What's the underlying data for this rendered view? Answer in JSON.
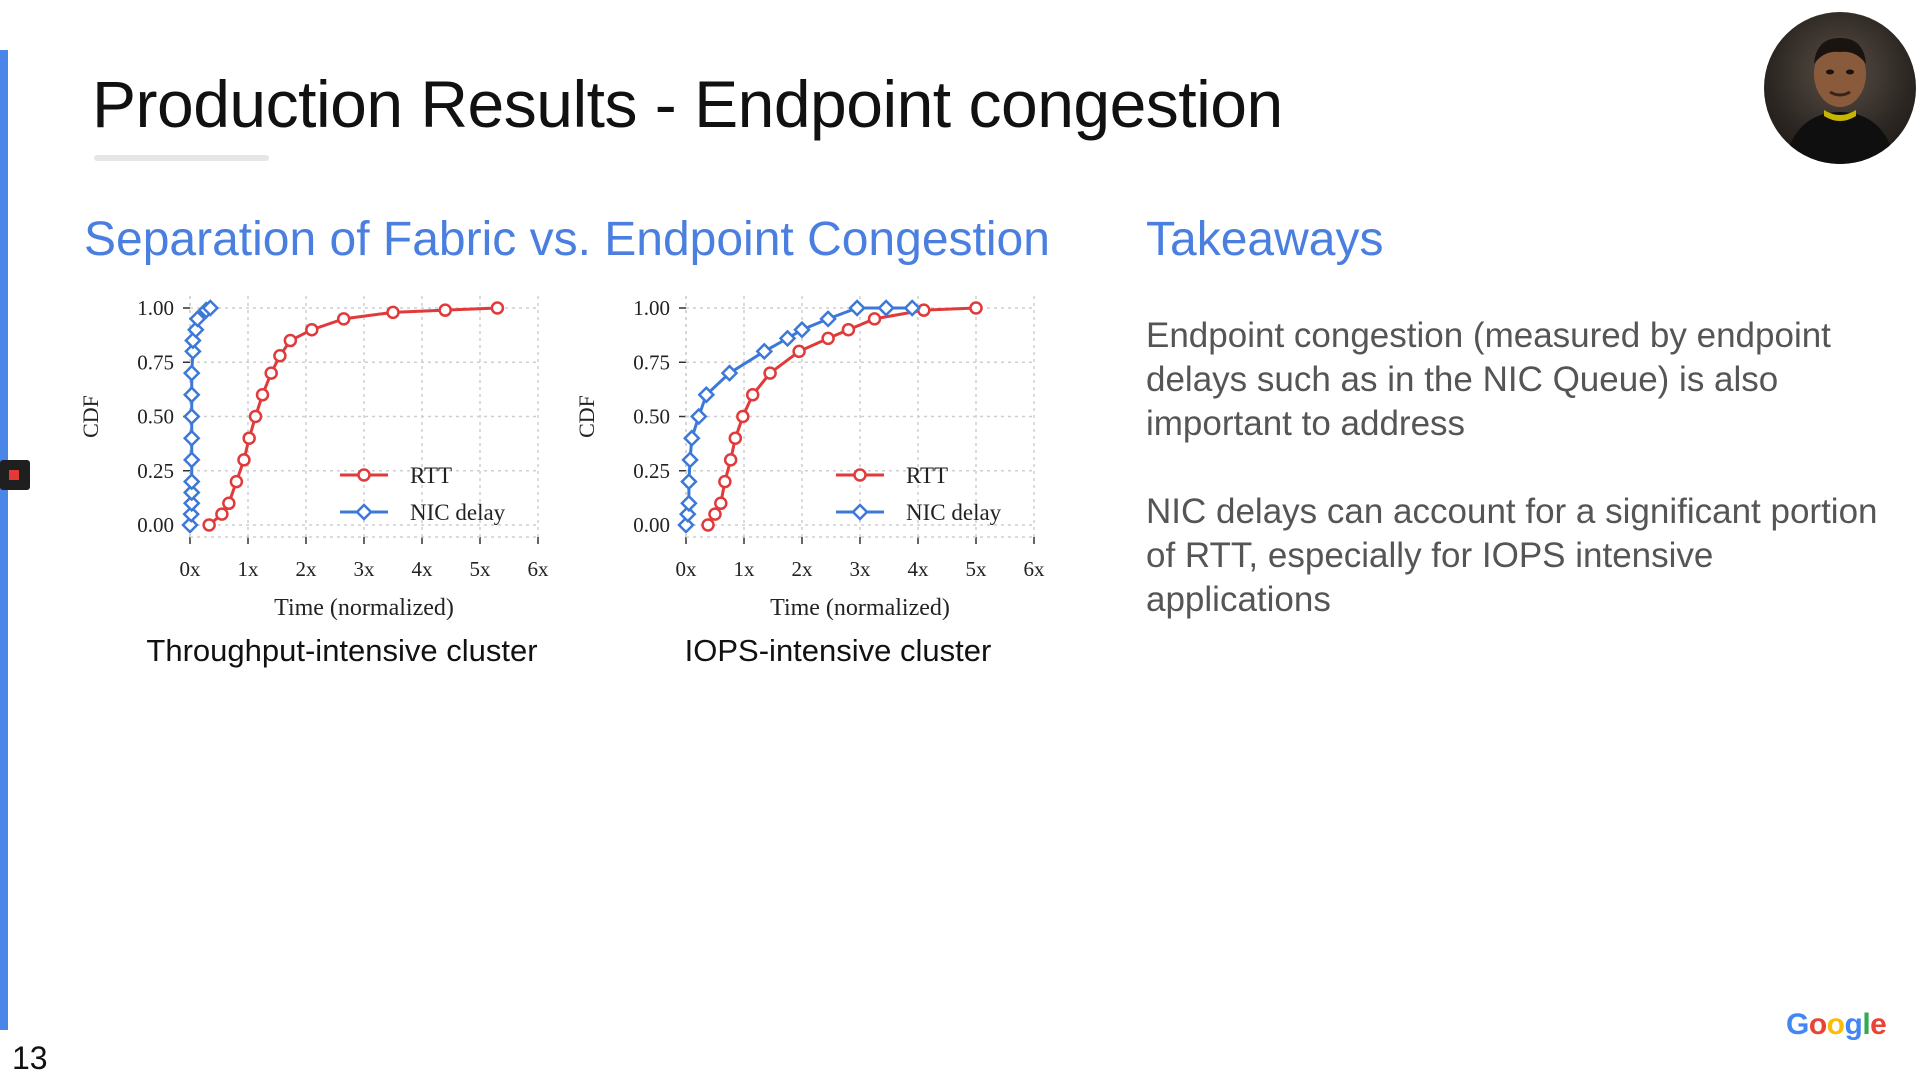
{
  "slide": {
    "title": "Production Results - Endpoint congestion",
    "page_number": "13",
    "left_heading": "Separation of Fabric vs. Endpoint Congestion",
    "right_heading": "Takeaways",
    "takeaways": [
      "Endpoint congestion (measured by endpoint delays such as in the NIC Queue) is also important to address",
      "NIC delays can account for a significant portion of RTT,  especially for IOPS intensive applications"
    ],
    "logo": {
      "letters": [
        "G",
        "o",
        "o",
        "g",
        "l",
        "e"
      ],
      "colors": [
        "#4285f4",
        "#ea4335",
        "#fbbc05",
        "#4285f4",
        "#34a853",
        "#ea4335"
      ]
    },
    "accent_color": "#4a86e8",
    "presenter_video": "webcam-thumbnail"
  },
  "chart_data": [
    {
      "type": "line",
      "caption": "Throughput-intensive cluster",
      "xlabel": "Time (normalized)",
      "ylabel": "CDF",
      "x_ticks": [
        "0x",
        "1x",
        "2x",
        "3x",
        "4x",
        "5x",
        "6x"
      ],
      "y_ticks": [
        "0.00",
        "0.25",
        "0.50",
        "0.75",
        "1.00"
      ],
      "xlim": [
        0,
        6
      ],
      "ylim": [
        0,
        1
      ],
      "grid": true,
      "legend": "bottom-right",
      "series": [
        {
          "name": "RTT",
          "color": "#e03a3a",
          "marker": "circle",
          "points": [
            [
              0.33,
              0.0
            ],
            [
              0.55,
              0.05
            ],
            [
              0.67,
              0.1
            ],
            [
              0.8,
              0.2
            ],
            [
              0.93,
              0.3
            ],
            [
              1.02,
              0.4
            ],
            [
              1.13,
              0.5
            ],
            [
              1.25,
              0.6
            ],
            [
              1.4,
              0.7
            ],
            [
              1.55,
              0.78
            ],
            [
              1.73,
              0.85
            ],
            [
              2.1,
              0.9
            ],
            [
              2.65,
              0.95
            ],
            [
              3.5,
              0.98
            ],
            [
              4.4,
              0.99
            ],
            [
              5.3,
              1.0
            ]
          ]
        },
        {
          "name": "NIC delay",
          "color": "#3c78d8",
          "marker": "diamond",
          "points": [
            [
              0.0,
              0.0
            ],
            [
              0.02,
              0.05
            ],
            [
              0.03,
              0.1
            ],
            [
              0.03,
              0.15
            ],
            [
              0.03,
              0.2
            ],
            [
              0.03,
              0.3
            ],
            [
              0.03,
              0.4
            ],
            [
              0.03,
              0.5
            ],
            [
              0.03,
              0.6
            ],
            [
              0.03,
              0.7
            ],
            [
              0.05,
              0.8
            ],
            [
              0.05,
              0.85
            ],
            [
              0.1,
              0.9
            ],
            [
              0.13,
              0.95
            ],
            [
              0.28,
              0.99
            ],
            [
              0.35,
              1.0
            ]
          ]
        }
      ]
    },
    {
      "type": "line",
      "caption": "IOPS-intensive cluster",
      "xlabel": "Time (normalized)",
      "ylabel": "CDF",
      "x_ticks": [
        "0x",
        "1x",
        "2x",
        "3x",
        "4x",
        "5x",
        "6x"
      ],
      "y_ticks": [
        "0.00",
        "0.25",
        "0.50",
        "0.75",
        "1.00"
      ],
      "xlim": [
        0,
        6
      ],
      "ylim": [
        0,
        1
      ],
      "grid": true,
      "legend": "bottom-right",
      "series": [
        {
          "name": "RTT",
          "color": "#e03a3a",
          "marker": "circle",
          "points": [
            [
              0.38,
              0.0
            ],
            [
              0.5,
              0.05
            ],
            [
              0.6,
              0.1
            ],
            [
              0.67,
              0.2
            ],
            [
              0.77,
              0.3
            ],
            [
              0.85,
              0.4
            ],
            [
              0.98,
              0.5
            ],
            [
              1.15,
              0.6
            ],
            [
              1.45,
              0.7
            ],
            [
              1.95,
              0.8
            ],
            [
              2.45,
              0.86
            ],
            [
              2.8,
              0.9
            ],
            [
              3.25,
              0.95
            ],
            [
              4.1,
              0.99
            ],
            [
              5.0,
              1.0
            ]
          ]
        },
        {
          "name": "NIC delay",
          "color": "#3c78d8",
          "marker": "diamond",
          "points": [
            [
              0.0,
              0.0
            ],
            [
              0.03,
              0.05
            ],
            [
              0.05,
              0.1
            ],
            [
              0.05,
              0.2
            ],
            [
              0.07,
              0.3
            ],
            [
              0.1,
              0.4
            ],
            [
              0.22,
              0.5
            ],
            [
              0.35,
              0.6
            ],
            [
              0.75,
              0.7
            ],
            [
              1.35,
              0.8
            ],
            [
              1.75,
              0.86
            ],
            [
              2.0,
              0.9
            ],
            [
              2.45,
              0.95
            ],
            [
              2.95,
              1.0
            ],
            [
              3.45,
              1.0
            ],
            [
              3.9,
              1.0
            ]
          ]
        }
      ]
    }
  ]
}
